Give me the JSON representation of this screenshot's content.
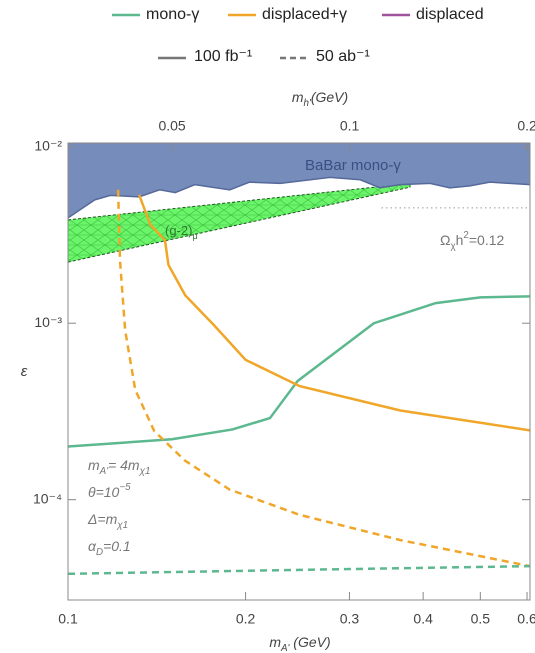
{
  "chart_data": {
    "type": "line",
    "legend": {
      "models": [
        {
          "name": "mono-γ",
          "color": "#5cb88e"
        },
        {
          "name": "displaced+γ",
          "color": "#f0a628"
        },
        {
          "name": "displaced",
          "color": "#a0529c"
        }
      ],
      "luminosities": [
        {
          "name": "100 fb⁻¹",
          "color": "#777777",
          "dash": "solid"
        },
        {
          "name": "50 ab⁻¹",
          "color": "#777777",
          "dash": "dashed"
        }
      ]
    },
    "x_label": [
      {
        "text": "m",
        "shift": "none"
      },
      {
        "text": "A'",
        "shift": "sub"
      },
      {
        "text": " (GeV)",
        "shift": "none"
      }
    ],
    "x2_label": [
      {
        "text": "m",
        "shift": "none"
      },
      {
        "text": "h'",
        "shift": "sub"
      },
      {
        "text": "(GeV)",
        "shift": "none"
      }
    ],
    "y_label": "ε",
    "log_x": true,
    "log_y": true,
    "xlim": [
      0.1,
      0.607
    ],
    "x2lim": [
      0.0333,
      0.2023
    ],
    "ylim": [
      2.7e-05,
      0.0105
    ],
    "xticks": [
      0.1,
      0.2,
      0.3,
      0.4,
      0.5,
      0.6
    ],
    "x2ticks": [
      0.05,
      0.1,
      0.2
    ],
    "yticks": [
      {
        "value": 0.01,
        "label": "10⁻²"
      },
      {
        "value": 0.001,
        "label": "10⁻³"
      },
      {
        "value": 0.0001,
        "label": "10⁻⁴"
      }
    ],
    "regions": [
      {
        "label": "BaBar mono-γ",
        "color": "#6f87b8",
        "edge": "#55699a",
        "x": [
          0.1,
          0.111,
          0.118,
          0.132,
          0.143,
          0.152,
          0.164,
          0.188,
          0.203,
          0.229,
          0.278,
          0.313,
          0.338,
          0.366,
          0.411,
          0.444,
          0.48,
          0.519,
          0.607
        ],
        "values": [
          0.00395,
          0.005,
          0.0053,
          0.0052,
          0.0057,
          0.0055,
          0.0061,
          0.0057,
          0.0063,
          0.0062,
          0.0067,
          0.0065,
          0.00585,
          0.0061,
          0.0062,
          0.00585,
          0.006,
          0.0063,
          0.0061
        ]
      }
    ],
    "band": {
      "label": [
        {
          "text": "(g-2)",
          "shift": "none"
        },
        {
          "text": "μ",
          "shift": "sub"
        }
      ],
      "color": "#6bf56b",
      "x": [
        0.1,
        0.38
      ],
      "upper": [
        0.00385,
        0.0062
      ],
      "lower": [
        0.00222,
        0.0059
      ]
    },
    "relic": {
      "label": [
        {
          "text": "Ω",
          "shift": "none"
        },
        {
          "text": "χ",
          "shift": "sub"
        },
        {
          "text": "h",
          "shift": "none"
        },
        {
          "text": "2",
          "shift": "sup"
        },
        {
          "text": "=0.12",
          "shift": "none"
        }
      ],
      "x": [
        0.34,
        0.607
      ],
      "value": 0.0045,
      "color": "#999999"
    },
    "curves": [
      {
        "color": "#5cb88e",
        "dash": "solid",
        "x": [
          0.1,
          0.15,
          0.19,
          0.22,
          0.245,
          0.33,
          0.42,
          0.5,
          0.607
        ],
        "values": [
          0.0002,
          0.00022,
          0.00025,
          0.00029,
          0.00047,
          0.001,
          0.0013,
          0.0014,
          0.00142
        ]
      },
      {
        "color": "#f0a628",
        "dash": "solid",
        "x": [
          0.132,
          0.138,
          0.146,
          0.148,
          0.158,
          0.177,
          0.2,
          0.247,
          0.366,
          0.607
        ],
        "values": [
          0.00534,
          0.0036,
          0.00296,
          0.00214,
          0.00144,
          0.00097,
          0.00062,
          0.00044,
          0.00032,
          0.000247
        ]
      },
      {
        "color": "#f0a628",
        "dash": "dashed",
        "x": [
          0.1216,
          0.1225,
          0.125,
          0.13,
          0.14,
          0.158,
          0.188,
          0.247,
          0.366,
          0.607
        ],
        "values": [
          0.0057,
          0.00228,
          0.00091,
          0.00042,
          0.000245,
          0.000166,
          0.000114,
          8.2e-05,
          5.9e-05,
          4.2e-05
        ]
      },
      {
        "color": "#5cb88e",
        "dash": "dashed",
        "x": [
          0.1,
          0.247,
          0.607
        ],
        "values": [
          3.8e-05,
          4e-05,
          4.2e-05
        ]
      }
    ],
    "annotations": [
      [
        {
          "text": "m",
          "shift": "none"
        },
        {
          "text": "A'",
          "shift": "sub"
        },
        {
          "text": "= 4m",
          "shift": "none"
        },
        {
          "text": "χ1",
          "shift": "sub"
        }
      ],
      [
        {
          "text": "θ=10",
          "shift": "none"
        },
        {
          "text": "−5",
          "shift": "sup"
        }
      ],
      [
        {
          "text": "Δ=m",
          "shift": "none"
        },
        {
          "text": "χ1",
          "shift": "sub"
        }
      ],
      [
        {
          "text": "α",
          "shift": "none"
        },
        {
          "text": "D",
          "shift": "sub"
        },
        {
          "text": "=0.1",
          "shift": "none"
        }
      ]
    ]
  }
}
